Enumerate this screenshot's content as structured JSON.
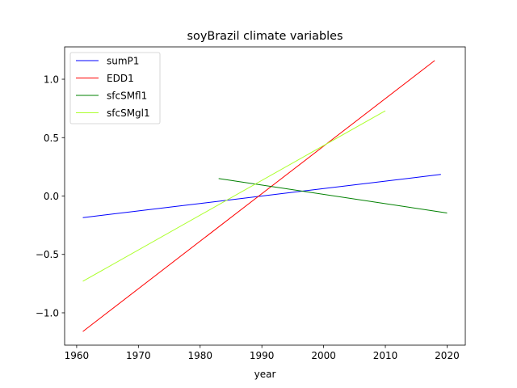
{
  "chart_data": {
    "type": "line",
    "title": "soyBrazil climate variables",
    "xlabel": "year",
    "ylabel": "",
    "xlim": [
      1958.05,
      2022.95
    ],
    "ylim": [
      -1.277,
      1.277
    ],
    "xticks": [
      1960,
      1970,
      1980,
      1990,
      2000,
      2010,
      2020
    ],
    "xtick_labels": [
      "1960",
      "1970",
      "1980",
      "1990",
      "2000",
      "2010",
      "2020"
    ],
    "yticks": [
      -1.0,
      -0.5,
      0.0,
      0.5,
      1.0
    ],
    "ytick_labels": [
      "−1.0",
      "−0.5",
      "0.0",
      "0.5",
      "1.0"
    ],
    "grid": false,
    "legend_position": "upper-left",
    "series": [
      {
        "name": "sumP1",
        "color": "#0000ff",
        "x": [
          1961,
          2019
        ],
        "y": [
          -0.185,
          0.185
        ]
      },
      {
        "name": "EDD1",
        "color": "#ff0000",
        "x": [
          1961,
          2018
        ],
        "y": [
          -1.16,
          1.16
        ]
      },
      {
        "name": "sfcSMfl1",
        "color": "#008000",
        "x": [
          1983,
          2020
        ],
        "y": [
          0.15,
          -0.145
        ]
      },
      {
        "name": "sfcSMgl1",
        "color": "#adff2f",
        "x": [
          1961,
          2010
        ],
        "y": [
          -0.73,
          0.73
        ]
      }
    ]
  }
}
